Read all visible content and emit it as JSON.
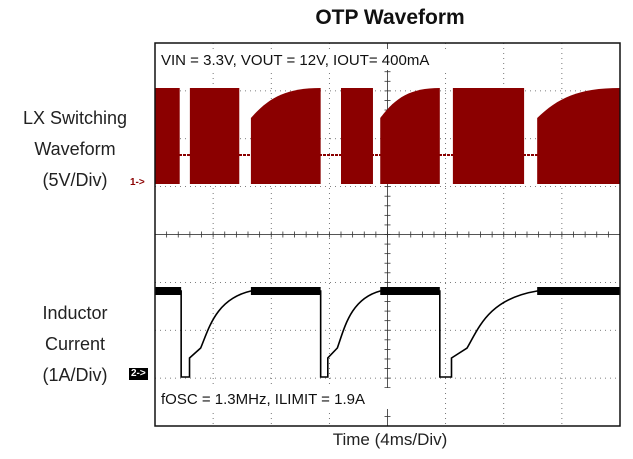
{
  "chart_data": {
    "type": "line",
    "title": "OTP Waveform",
    "xlabel": "Time (4ms/Div)",
    "grid": true,
    "annotations": [
      "VIN = 3.3V, VOUT = 12V, IOUT= 400mA",
      "fOSC = 1.3MHz, ILIMIT = 1.9A"
    ],
    "channel_markers": [
      "1->",
      "2->"
    ],
    "traces": [
      {
        "label_lines": [
          "LX Switching",
          "Waveform",
          "(5V/Div)"
        ],
        "color": "#8b0000",
        "kind": "switching_envelope",
        "bursts_ms": [
          [
            0.0,
            1.7
          ],
          [
            2.4,
            5.8
          ],
          [
            6.6,
            11.4
          ],
          [
            12.8,
            15.0
          ],
          [
            15.5,
            19.6
          ],
          [
            20.5,
            25.4
          ],
          [
            26.3,
            32.0
          ]
        ]
      },
      {
        "label_lines": [
          "Inductor",
          "Current",
          "(1A/Div)"
        ],
        "color": "#000000",
        "kind": "current",
        "high_segments_ms": [
          [
            0.0,
            1.8
          ],
          [
            6.6,
            11.4
          ],
          [
            15.5,
            19.6
          ],
          [
            26.3,
            32.0
          ]
        ],
        "low_segments_ms": [
          [
            1.8,
            6.6
          ],
          [
            11.4,
            15.5
          ],
          [
            19.6,
            26.3
          ]
        ]
      }
    ]
  }
}
